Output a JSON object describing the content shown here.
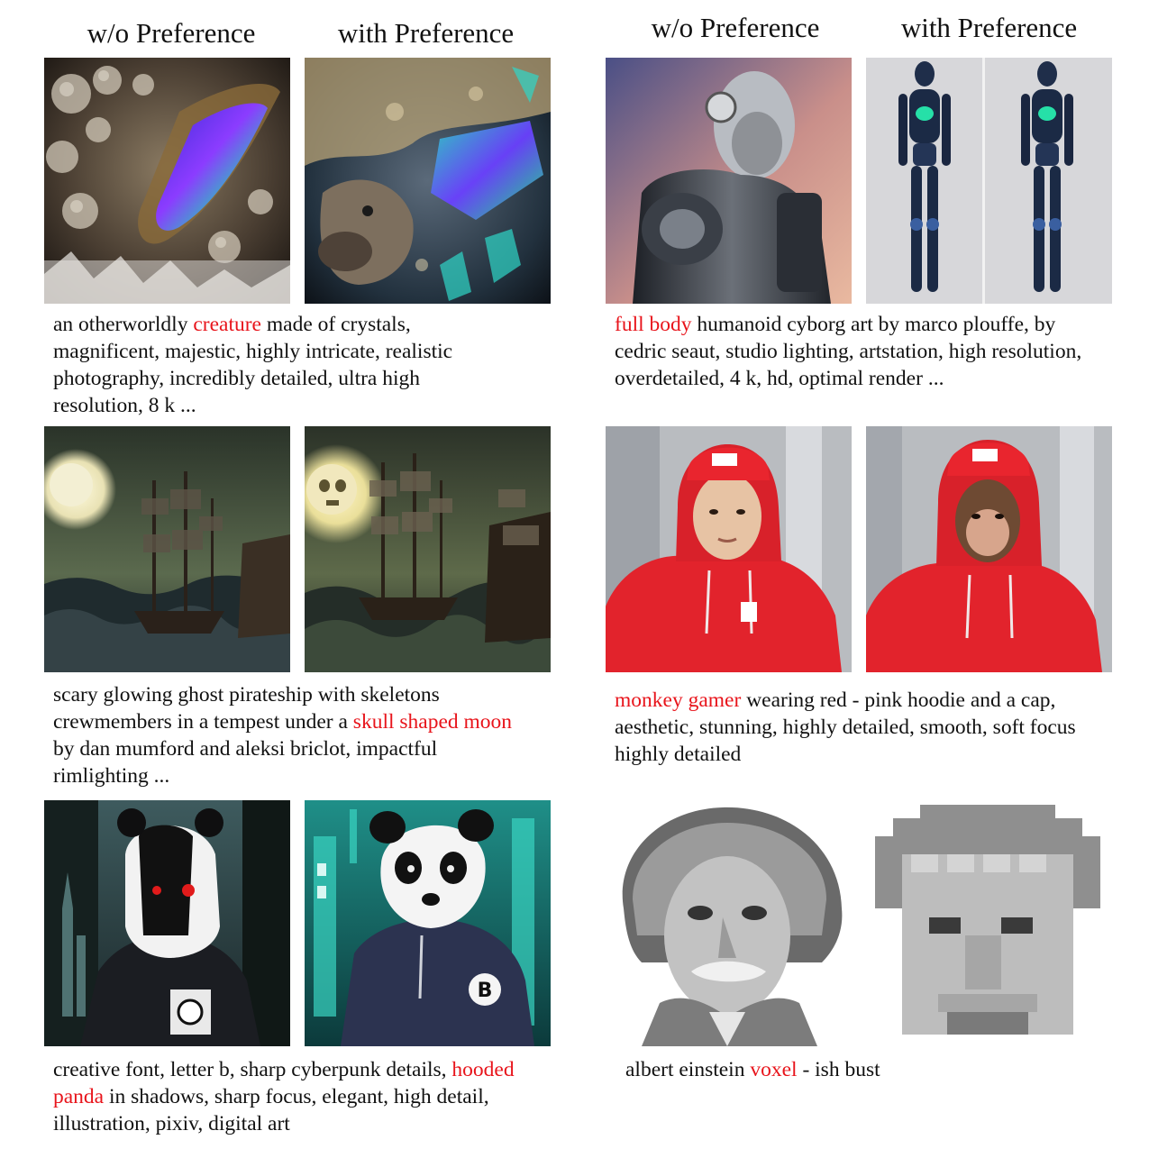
{
  "headers": {
    "left_without": "w/o Preference",
    "left_with": "with Preference",
    "right_without": "w/o Preference",
    "right_with": "with Preference"
  },
  "examples": [
    {
      "id": "crystal-creature",
      "caption_parts": [
        {
          "text": "an otherworldly ",
          "highlight": false
        },
        {
          "text": "creature",
          "highlight": true
        },
        {
          "text": " made of crystals, magnificent, majestic, highly intricate, realistic photography, incredibly detailed, ultra high resolution, 8 k ...",
          "highlight": false
        }
      ]
    },
    {
      "id": "cyborg",
      "caption_parts": [
        {
          "text": "full body",
          "highlight": true
        },
        {
          "text": " humanoid cyborg art by marco plouffe, by cedric seaut, studio lighting, artstation, high resolution, overdetailed, 4 k, hd, optimal render ...",
          "highlight": false
        }
      ]
    },
    {
      "id": "ghost-ship",
      "caption_parts": [
        {
          "text": "scary glowing ghost pirateship with skeletons crewmembers in a tempest under a ",
          "highlight": false
        },
        {
          "text": "skull shaped moon",
          "highlight": true
        },
        {
          "text": " by dan mumford and aleksi briclot, impactful rimlighting ...",
          "highlight": false
        }
      ]
    },
    {
      "id": "monkey-gamer",
      "caption_parts": [
        {
          "text": "monkey gamer",
          "highlight": true
        },
        {
          "text": " wearing red - pink hoodie and a cap, aesthetic, stunning, highly detailed, smooth, soft focus highly detailed",
          "highlight": false
        }
      ]
    },
    {
      "id": "hooded-panda",
      "caption_parts": [
        {
          "text": "creative font, letter b, sharp cyberpunk details, ",
          "highlight": false
        },
        {
          "text": "hooded panda",
          "highlight": true
        },
        {
          "text": " in shadows, sharp focus, elegant, high detail, illustration, pixiv, digital art",
          "highlight": false
        }
      ]
    },
    {
      "id": "einstein-voxel",
      "caption_parts": [
        {
          "text": "albert einstein ",
          "highlight": false
        },
        {
          "text": "voxel",
          "highlight": true
        },
        {
          "text": " - ish bust",
          "highlight": false
        }
      ]
    }
  ],
  "colors": {
    "highlight": "#e8141b",
    "text": "#111111"
  }
}
